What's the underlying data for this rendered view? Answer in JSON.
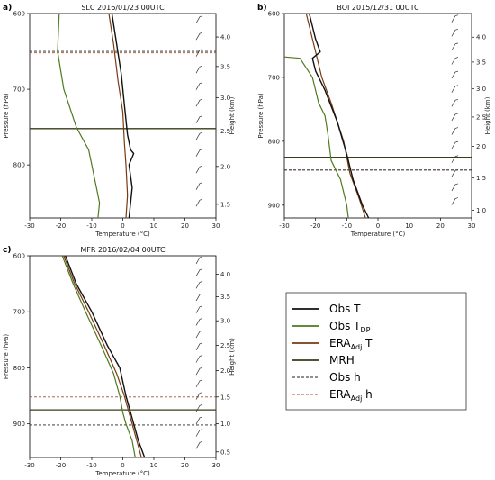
{
  "colors": {
    "obs_t": "#111111",
    "obs_tdp": "#4f7a1f",
    "era_t": "#7a3a10",
    "mrh": "#3a3a1a",
    "obs_h": "#222222",
    "era_h": "#a0522d"
  },
  "legend": {
    "obs_t": "Obs T",
    "obs_tdp_main": "Obs T",
    "obs_tdp_sub": "DP",
    "era_t_main": "ERA",
    "era_t_sub": "Adj",
    "era_t_tail": " T",
    "mrh": "MRH",
    "obs_h": "Obs h",
    "era_h_main": "ERA",
    "era_h_sub": "Adj",
    "era_h_tail": " h"
  },
  "chart_data": [
    {
      "type": "line",
      "panel_label": "a)",
      "title": "SLC 2016/01/23 00UTC",
      "xlabel": "Temperature (°C)",
      "ylabel": "Pressure (hPa)",
      "y2label": "Height (km)",
      "xlim": [
        -30,
        30
      ],
      "ylim": [
        870,
        600
      ],
      "x_ticks": [
        -30,
        -20,
        -10,
        0,
        10,
        20,
        30
      ],
      "y_ticks": [
        600,
        700,
        800
      ],
      "y2_ticks": [
        {
          "label": "1.5",
          "p": 852
        },
        {
          "label": "2.0",
          "p": 802
        },
        {
          "label": "2.5",
          "p": 755
        },
        {
          "label": "3.0",
          "p": 711
        },
        {
          "label": "3.5",
          "p": 670
        },
        {
          "label": "4.0",
          "p": 631
        }
      ],
      "obs_t": [
        [
          -3.5,
          600
        ],
        [
          -2,
          640
        ],
        [
          -0.5,
          680
        ],
        [
          0.5,
          720
        ],
        [
          1.5,
          760
        ],
        [
          2.5,
          780
        ],
        [
          3.5,
          785
        ],
        [
          2,
          800
        ],
        [
          3,
          830
        ],
        [
          2,
          870
        ]
      ],
      "obs_tdp": [
        [
          -20.5,
          600
        ],
        [
          -21,
          650
        ],
        [
          -19,
          700
        ],
        [
          -15,
          750
        ],
        [
          -11,
          780
        ],
        [
          -10,
          800
        ],
        [
          -8.5,
          830
        ],
        [
          -7.5,
          850
        ],
        [
          -8,
          870
        ]
      ],
      "era_t": [
        [
          -4.5,
          600
        ],
        [
          -3,
          640
        ],
        [
          -1.5,
          690
        ],
        [
          0,
          730
        ],
        [
          0.5,
          770
        ],
        [
          1,
          800
        ],
        [
          1.5,
          840
        ],
        [
          1,
          870
        ]
      ],
      "mrh_p": 752,
      "obs_h_p": 650,
      "era_h_p": 652
    },
    {
      "type": "line",
      "panel_label": "b)",
      "title": "BOI 2015/12/31 00UTC",
      "xlabel": "Temperature (°C)",
      "ylabel": "Pressure (hPa)",
      "y2label": "Height (km)",
      "xlim": [
        -30,
        30
      ],
      "ylim": [
        920,
        600
      ],
      "x_ticks": [
        -30,
        -20,
        -10,
        0,
        10,
        20,
        30
      ],
      "y_ticks": [
        600,
        700,
        800,
        900
      ],
      "y2_ticks": [
        {
          "label": "1.0",
          "p": 908
        },
        {
          "label": "1.5",
          "p": 857
        },
        {
          "label": "2.0",
          "p": 808
        },
        {
          "label": "2.5",
          "p": 762
        },
        {
          "label": "3.0",
          "p": 718
        },
        {
          "label": "3.5",
          "p": 676
        },
        {
          "label": "4.0",
          "p": 637
        }
      ],
      "obs_t": [
        [
          -22,
          600
        ],
        [
          -20,
          640
        ],
        [
          -18.5,
          660
        ],
        [
          -21,
          670
        ],
        [
          -20,
          690
        ],
        [
          -17,
          720
        ],
        [
          -13,
          770
        ],
        [
          -10,
          820
        ],
        [
          -8,
          860
        ],
        [
          -5,
          900
        ],
        [
          -3,
          920
        ]
      ],
      "obs_tdp": [
        [
          -30,
          668
        ],
        [
          -25,
          670
        ],
        [
          -21,
          700
        ],
        [
          -19,
          740
        ],
        [
          -17,
          760
        ],
        [
          -16,
          790
        ],
        [
          -15,
          830
        ],
        [
          -12,
          860
        ],
        [
          -10,
          900
        ],
        [
          -9.5,
          920
        ]
      ],
      "era_t": [
        [
          -23,
          600
        ],
        [
          -20,
          660
        ],
        [
          -18,
          700
        ],
        [
          -15,
          740
        ],
        [
          -11,
          800
        ],
        [
          -9,
          850
        ],
        [
          -6,
          890
        ],
        [
          -4,
          920
        ]
      ],
      "mrh_p": 825,
      "obs_h_p": 845,
      "era_h_p": 845
    },
    {
      "type": "line",
      "panel_label": "c)",
      "title": "MFR 2016/02/04 00UTC",
      "xlabel": "Temperature (°C)",
      "ylabel": "Pressure (hPa)",
      "y2label": "Height (km)",
      "xlim": [
        -30,
        30
      ],
      "ylim": [
        960,
        600
      ],
      "x_ticks": [
        -30,
        -20,
        -10,
        0,
        10,
        20,
        30
      ],
      "y_ticks": [
        600,
        700,
        800,
        900
      ],
      "y2_ticks": [
        {
          "label": "0.5",
          "p": 950
        },
        {
          "label": "1.0",
          "p": 900
        },
        {
          "label": "1.5",
          "p": 852
        },
        {
          "label": "2.0",
          "p": 805
        },
        {
          "label": "2.5",
          "p": 760
        },
        {
          "label": "3.0",
          "p": 716
        },
        {
          "label": "3.5",
          "p": 673
        },
        {
          "label": "4.0",
          "p": 633
        }
      ],
      "obs_t": [
        [
          -18.5,
          600
        ],
        [
          -15,
          650
        ],
        [
          -10,
          700
        ],
        [
          -5,
          760
        ],
        [
          -1,
          800
        ],
        [
          1,
          850
        ],
        [
          3,
          890
        ],
        [
          5,
          930
        ],
        [
          7,
          960
        ]
      ],
      "obs_tdp": [
        [
          -19.5,
          600
        ],
        [
          -16,
          650
        ],
        [
          -12,
          700
        ],
        [
          -7,
          760
        ],
        [
          -3,
          810
        ],
        [
          -1,
          850
        ],
        [
          0,
          880
        ],
        [
          1,
          900
        ],
        [
          3,
          930
        ],
        [
          4,
          960
        ]
      ],
      "era_t": [
        [
          -19,
          600
        ],
        [
          -15.5,
          650
        ],
        [
          -11,
          700
        ],
        [
          -6,
          760
        ],
        [
          -2,
          810
        ],
        [
          0.5,
          850
        ],
        [
          2,
          880
        ],
        [
          4,
          920
        ],
        [
          6,
          960
        ]
      ],
      "mrh_p": 875,
      "obs_h_p": 902,
      "era_h_p": 852
    }
  ]
}
